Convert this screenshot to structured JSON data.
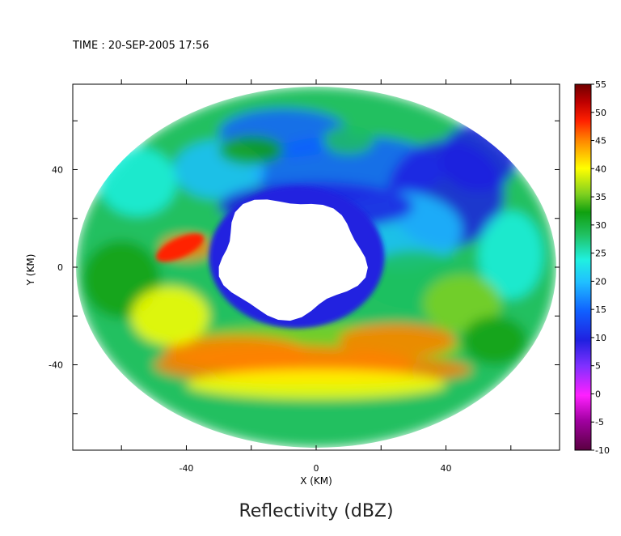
{
  "time_label": "TIME : 20-SEP-2005 17:56",
  "chart_data": {
    "type": "heatmap",
    "title": "Reflectivity (dBZ)",
    "xlabel": "X (KM)",
    "ylabel": "Y (KM)",
    "xlim": [
      -75,
      75
    ],
    "ylim": [
      -75,
      75
    ],
    "x_tick_labels": [
      -40,
      0,
      40
    ],
    "y_tick_labels": [
      40,
      0,
      -40
    ],
    "minor_ticks": [
      -60,
      -40,
      -20,
      0,
      20,
      40,
      60
    ],
    "grid": false,
    "colorbar": {
      "placement": "right",
      "range": [
        -10,
        55
      ],
      "tick_labels": [
        55,
        50,
        45,
        40,
        35,
        30,
        25,
        20,
        15,
        10,
        5,
        0,
        -5,
        -10
      ],
      "colors": [
        "#5a0040",
        "#a000a0",
        "#ff20ff",
        "#8030ff",
        "#2020e0",
        "#1060ff",
        "#20c0ff",
        "#20f0e0",
        "#20c060",
        "#10a010",
        "#80d020",
        "#ffff00",
        "#ffc000",
        "#ff8000",
        "#ff2000",
        "#c00000",
        "#700000"
      ]
    },
    "features": [
      {
        "name": "echo boundary",
        "cx": 0,
        "cy": 0,
        "rx": 74,
        "ry": 74
      },
      {
        "name": "no-echo region (eye)",
        "cx": -8,
        "cy": 4,
        "rx": 22,
        "ry": 24
      },
      {
        "name": "southern rainband (max ~50 dBZ)",
        "cx": 0,
        "cy": -40,
        "rx": 55,
        "ry": 10,
        "value": 50
      },
      {
        "name": "western cell (max ~48 dBZ)",
        "cx": -42,
        "cy": 8,
        "rx": 8,
        "ry": 4,
        "value": 48
      },
      {
        "name": "northern weak echo region (~10 dBZ)",
        "cx": 15,
        "cy": 30,
        "rx": 40,
        "ry": 25,
        "value": 10
      }
    ]
  }
}
